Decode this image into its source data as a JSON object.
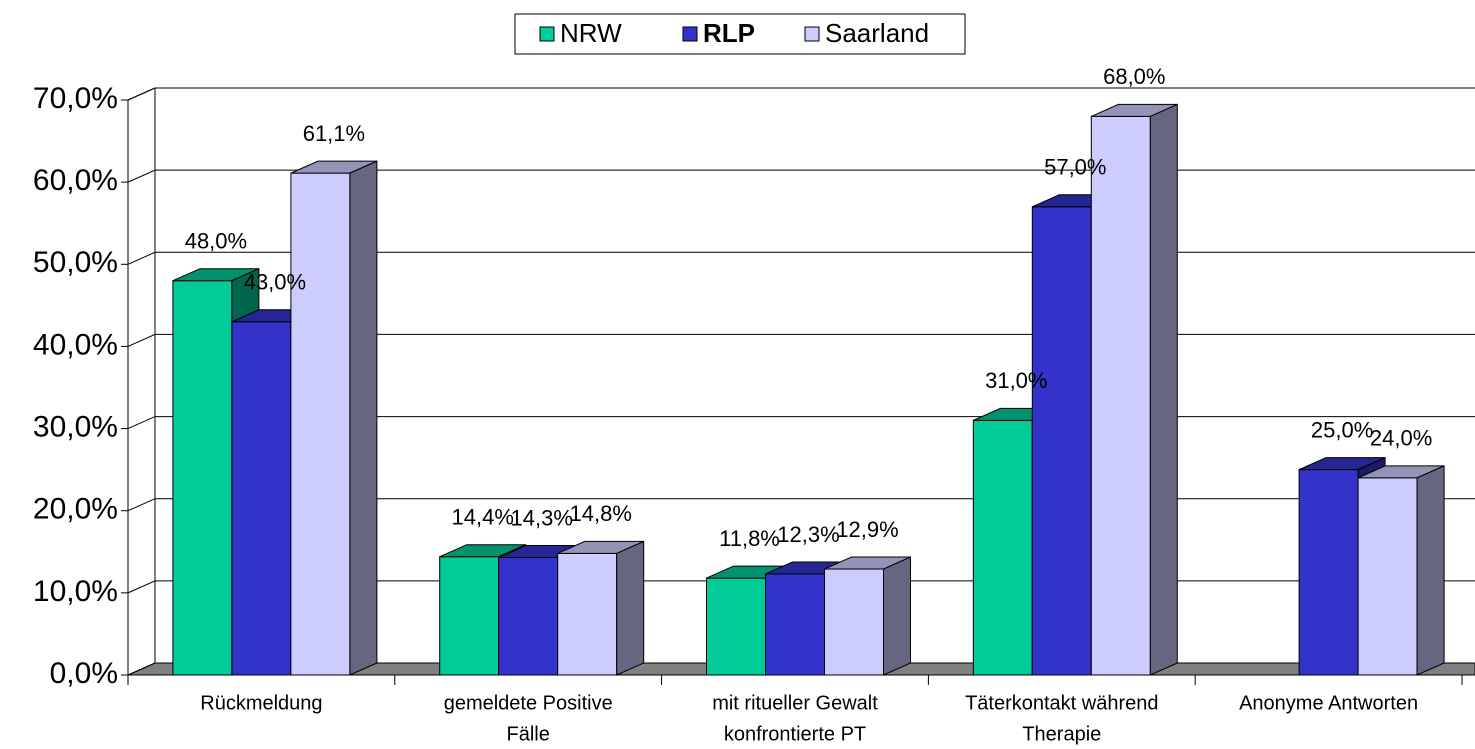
{
  "chart_data": {
    "type": "bar3d",
    "categories": [
      [
        "Rückmeldung"
      ],
      [
        "gemeldete Positive",
        "Fälle"
      ],
      [
        "mit ritueller Gewalt",
        "konfrontierte PT"
      ],
      [
        "Täterkontakt während",
        "Therapie"
      ],
      [
        "Anonyme Antworten"
      ]
    ],
    "series": [
      {
        "name": "NRW",
        "color": "#00CC99",
        "values": [
          48.0,
          14.4,
          11.8,
          31.0,
          null
        ],
        "value_labels": [
          "48,0%",
          "14,4%",
          "11,8%",
          "31,0%",
          null
        ]
      },
      {
        "name": "RLP",
        "color": "#3333CC",
        "values": [
          43.0,
          14.3,
          12.3,
          57.0,
          25.0
        ],
        "value_labels": [
          "43,0%",
          "14,3%",
          "12,3%",
          "57,0%",
          "25,0%"
        ]
      },
      {
        "name": "Saarland",
        "color": "#CCCCFF",
        "values": [
          61.1,
          14.8,
          12.9,
          68.0,
          24.0
        ],
        "value_labels": [
          "61,1%",
          "14,8%",
          "12,9%",
          "68,0%",
          "24,0%"
        ]
      }
    ],
    "ylim": [
      0,
      70
    ],
    "yticks": [
      {
        "value": 0,
        "label": "0,0%"
      },
      {
        "value": 10,
        "label": "10,0%"
      },
      {
        "value": 20,
        "label": "20,0%"
      },
      {
        "value": 30,
        "label": "30,0%"
      },
      {
        "value": 40,
        "label": "40,0%"
      },
      {
        "value": 50,
        "label": "50,0%"
      },
      {
        "value": 60,
        "label": "60,0%"
      },
      {
        "value": 70,
        "label": "70,0%"
      }
    ],
    "grid": true,
    "legend": "top"
  }
}
